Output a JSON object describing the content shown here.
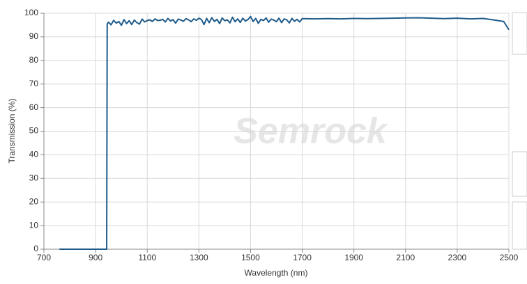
{
  "chart_data": {
    "type": "line",
    "xlabel": "Wavelength (nm)",
    "ylabel": "Transmission (%)",
    "watermark": "Semrock",
    "xlim": [
      700,
      2500
    ],
    "xticks": [
      700,
      900,
      1100,
      1300,
      1500,
      1700,
      1900,
      2100,
      2300,
      2500
    ],
    "ylim": [
      0,
      100
    ],
    "yticks": [
      0,
      10,
      20,
      30,
      40,
      50,
      60,
      70,
      80,
      90,
      100
    ],
    "grid": true,
    "x": [
      760,
      943,
      945,
      950,
      960,
      970,
      980,
      990,
      1000,
      1010,
      1020,
      1030,
      1040,
      1050,
      1060,
      1070,
      1080,
      1090,
      1100,
      1110,
      1120,
      1130,
      1140,
      1150,
      1160,
      1170,
      1180,
      1190,
      1200,
      1210,
      1220,
      1230,
      1240,
      1250,
      1260,
      1270,
      1280,
      1290,
      1300,
      1310,
      1320,
      1330,
      1340,
      1350,
      1360,
      1370,
      1380,
      1390,
      1400,
      1410,
      1420,
      1430,
      1440,
      1450,
      1460,
      1470,
      1480,
      1490,
      1500,
      1510,
      1520,
      1530,
      1540,
      1550,
      1560,
      1570,
      1580,
      1590,
      1600,
      1610,
      1620,
      1630,
      1640,
      1650,
      1660,
      1670,
      1680,
      1690,
      1700,
      1750,
      1800,
      1850,
      1900,
      1950,
      2000,
      2050,
      2100,
      2150,
      2200,
      2250,
      2300,
      2350,
      2400,
      2450,
      2480,
      2500
    ],
    "series": [
      {
        "color": "#1f5b8a",
        "values": [
          0,
          0,
          95.5,
          96.2,
          95.1,
          97.0,
          95.8,
          96.5,
          94.9,
          97.3,
          95.6,
          96.8,
          95.2,
          97.1,
          96.0,
          95.4,
          97.5,
          96.3,
          96.9,
          97.2,
          96.5,
          97.6,
          96.9,
          97.0,
          97.4,
          96.3,
          97.8,
          96.7,
          97.3,
          95.8,
          97.5,
          97.1,
          96.6,
          97.7,
          97.2,
          96.4,
          97.6,
          97.0,
          97.9,
          97.3,
          95.2,
          97.8,
          96.0,
          98.1,
          96.5,
          97.4,
          95.6,
          98.0,
          96.8,
          97.2,
          95.9,
          98.3,
          96.4,
          97.6,
          96.1,
          97.9,
          96.7,
          97.3,
          98.6,
          96.5,
          97.8,
          95.7,
          97.4,
          96.9,
          98.0,
          96.2,
          97.5,
          97.1,
          96.4,
          97.9,
          96.0,
          97.6,
          97.2,
          95.9,
          97.8,
          96.6,
          97.4,
          96.3,
          97.7,
          97.6,
          97.7,
          97.6,
          97.8,
          97.7,
          97.8,
          97.9,
          98.0,
          98.1,
          97.9,
          97.7,
          97.9,
          97.6,
          97.8,
          97.0,
          96.5,
          93.0
        ]
      }
    ]
  }
}
